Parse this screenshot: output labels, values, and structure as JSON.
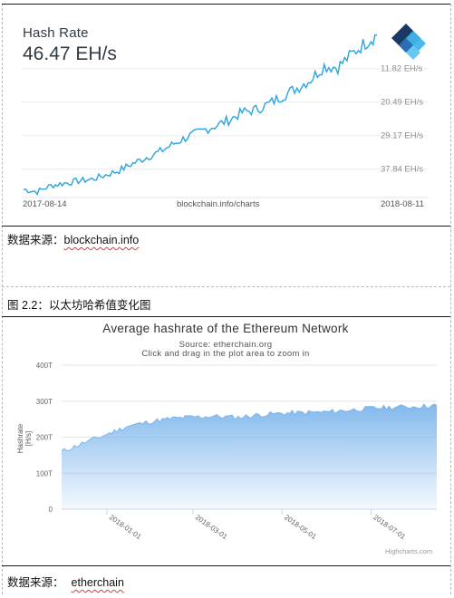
{
  "chart1": {
    "title": "Hash Rate",
    "current_value": "46.47 EH/s",
    "y_tick_labels": [
      "37.84 EH/s",
      "29.17 EH/s",
      "20.49 EH/s",
      "11.82 EH/s"
    ],
    "x_start_label": "2017-08-14",
    "x_end_label": "2018-08-11",
    "watermark": "blockchain.info/charts",
    "colors": {
      "line": "#2aa4dd",
      "text": "#2f3a44",
      "logo_dark": "#1b3a63",
      "logo_light": "#3fb6e8"
    },
    "logo_icon": "blockchain-logo-icon"
  },
  "source1": {
    "prefix": "数据来源：",
    "link": "blockchain.info"
  },
  "figure_caption": "图 2.2：以太坊哈希值变化图",
  "chart2": {
    "title": "Average hashrate of the Ethereum Network",
    "subtitle_line1": "Source: etherchain.org",
    "subtitle_line2": "Click and drag in the plot area to zoom in",
    "ylabel": "Hashrate [H/s]",
    "y_tick_labels": [
      "400T",
      "300T",
      "200T",
      "100T",
      "0"
    ],
    "x_tick_labels": [
      "2018-01-01",
      "2018-03-01",
      "2018-05-01",
      "2018-07-01"
    ],
    "credit": "Highcharts.com",
    "colors": {
      "area_top": "#7cb5ec",
      "area_bottom": "#ffffff",
      "line": "#7cb5ec",
      "grid": "#e6e6e6"
    }
  },
  "source2": {
    "prefix": "数据来源：",
    "link": "etherchain"
  },
  "chart_data": [
    {
      "type": "line",
      "title": "Hash Rate",
      "x_range": [
        "2017-08-14",
        "2018-08-11"
      ],
      "y_unit": "EH/s",
      "y_ticks": [
        11.82,
        20.49,
        29.17,
        37.84
      ],
      "ylim": [
        4.5,
        49
      ],
      "x": [
        "2017-08-14",
        "2017-08-28",
        "2017-09-11",
        "2017-09-25",
        "2017-10-09",
        "2017-10-23",
        "2017-11-06",
        "2017-11-20",
        "2017-12-04",
        "2017-12-18",
        "2018-01-01",
        "2018-01-15",
        "2018-01-29",
        "2018-02-12",
        "2018-02-26",
        "2018-03-12",
        "2018-03-26",
        "2018-04-09",
        "2018-04-23",
        "2018-05-07",
        "2018-05-21",
        "2018-06-04",
        "2018-06-18",
        "2018-07-02",
        "2018-07-16",
        "2018-07-30",
        "2018-08-11"
      ],
      "values": [
        6.6,
        6.0,
        7.6,
        8.2,
        8.8,
        9.2,
        10.3,
        11.5,
        13.3,
        14.9,
        16.4,
        18.4,
        20.2,
        21.6,
        23.0,
        24.5,
        26.5,
        27.2,
        28.8,
        30.9,
        32.8,
        35.0,
        38.5,
        38.2,
        41.5,
        44.5,
        46.47
      ]
    },
    {
      "type": "area",
      "title": "Average hashrate of the Ethereum Network",
      "ylabel": "Hashrate [H/s]",
      "y_unit": "T",
      "ylim": [
        0,
        400
      ],
      "y_ticks": [
        0,
        100,
        200,
        300,
        400
      ],
      "x_ticks": [
        "2018-01-01",
        "2018-03-01",
        "2018-05-01",
        "2018-07-01"
      ],
      "x": [
        "2017-12-01",
        "2017-12-15",
        "2018-01-01",
        "2018-01-15",
        "2018-02-01",
        "2018-02-15",
        "2018-03-01",
        "2018-03-15",
        "2018-04-01",
        "2018-04-15",
        "2018-05-01",
        "2018-05-15",
        "2018-06-01",
        "2018-06-15",
        "2018-07-01",
        "2018-07-15",
        "2018-08-01",
        "2018-08-15"
      ],
      "values": [
        160,
        182,
        208,
        230,
        244,
        252,
        256,
        258,
        255,
        262,
        266,
        268,
        270,
        275,
        280,
        283,
        285,
        288
      ]
    }
  ]
}
